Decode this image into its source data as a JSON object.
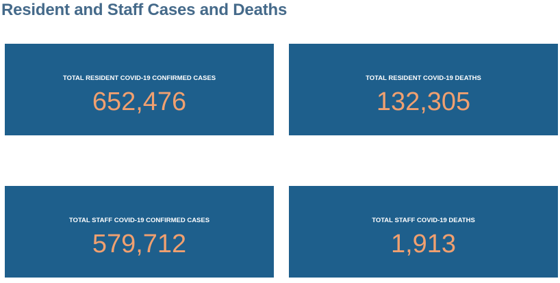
{
  "header": {
    "title": "Resident and Staff Cases and Deaths"
  },
  "colors": {
    "title": "#456a8a",
    "card_background": "#1e5f8c",
    "label_text": "#ffffff",
    "value_text": "#f0a070"
  },
  "cards": [
    {
      "label": "TOTAL RESIDENT COVID-19 CONFIRMED CASES",
      "value": "652,476"
    },
    {
      "label": "TOTAL RESIDENT COVID-19 DEATHS",
      "value": "132,305"
    },
    {
      "label": "TOTAL STAFF COVID-19 CONFIRMED CASES",
      "value": "579,712"
    },
    {
      "label": "TOTAL STAFF COVID-19 DEATHS",
      "value": "1,913"
    }
  ]
}
